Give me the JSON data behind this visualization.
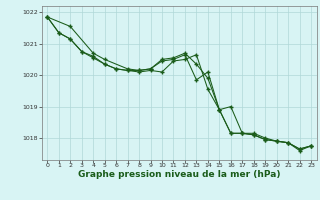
{
  "background_color": "#d8f4f4",
  "grid_color": "#b0d8d8",
  "line_color": "#1a5c1a",
  "xlabel": "Graphe pression niveau de la mer (hPa)",
  "xlabel_fontsize": 6.5,
  "ylim": [
    1017.3,
    1022.2
  ],
  "xlim": [
    -0.5,
    23.5
  ],
  "yticks": [
    1018,
    1019,
    1020,
    1021,
    1022
  ],
  "xticks": [
    0,
    1,
    2,
    3,
    4,
    5,
    6,
    7,
    8,
    9,
    10,
    11,
    12,
    13,
    14,
    15,
    16,
    17,
    18,
    19,
    20,
    21,
    22,
    23
  ],
  "series1": {
    "x": [
      0,
      1,
      2,
      3,
      4,
      5,
      6,
      7,
      8,
      9,
      10,
      11,
      12,
      13,
      14,
      15,
      16,
      17,
      18,
      19,
      20,
      21,
      22,
      23
    ],
    "y": [
      1021.85,
      1021.35,
      1021.15,
      1020.75,
      1020.6,
      1020.35,
      1020.2,
      1020.15,
      1020.1,
      1020.15,
      1020.1,
      1020.45,
      1020.5,
      1020.65,
      1019.55,
      1018.9,
      1018.15,
      1018.15,
      1018.1,
      1017.95,
      1017.9,
      1017.85,
      1017.65,
      1017.75
    ]
  },
  "series2": {
    "x": [
      0,
      1,
      2,
      3,
      4,
      5,
      6,
      7,
      8,
      9,
      10,
      11,
      12,
      13,
      14,
      15,
      16,
      17,
      18,
      19,
      20,
      21,
      22,
      23
    ],
    "y": [
      1021.85,
      1021.35,
      1021.15,
      1020.75,
      1020.55,
      1020.35,
      1020.2,
      1020.15,
      1020.15,
      1020.2,
      1020.5,
      1020.55,
      1020.7,
      1020.35,
      1019.9,
      1018.9,
      1018.15,
      1018.15,
      1018.1,
      1017.95,
      1017.9,
      1017.85,
      1017.65,
      1017.75
    ]
  },
  "series3": {
    "x": [
      0,
      2,
      4,
      5,
      7,
      8,
      9,
      10,
      11,
      12,
      13,
      14,
      15,
      16,
      17,
      18,
      19,
      20,
      21,
      22,
      23
    ],
    "y": [
      1021.85,
      1021.55,
      1020.7,
      1020.5,
      1020.2,
      1020.15,
      1020.2,
      1020.45,
      1020.5,
      1020.65,
      1019.85,
      1020.1,
      1018.9,
      1019.0,
      1018.15,
      1018.15,
      1018.0,
      1017.9,
      1017.85,
      1017.6,
      1017.75
    ]
  }
}
